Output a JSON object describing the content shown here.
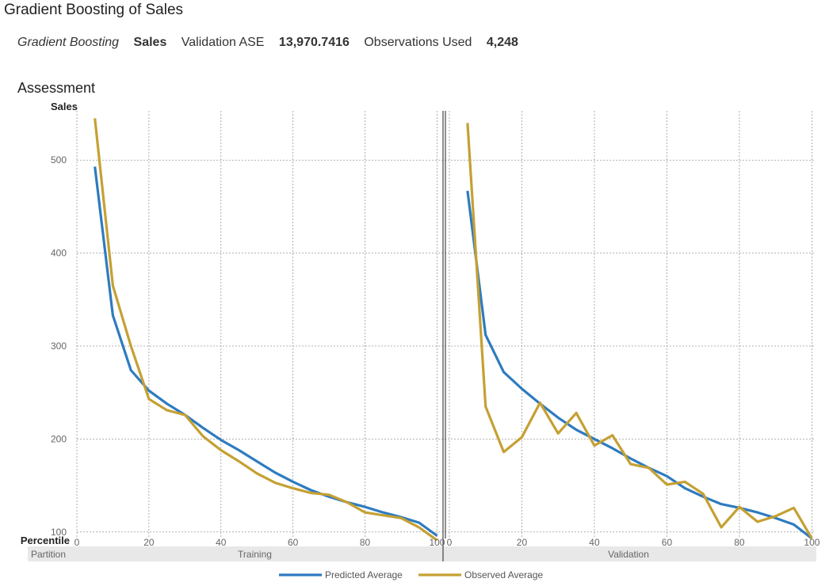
{
  "page": {
    "title": "Gradient Boosting of Sales"
  },
  "summary": {
    "model": "Gradient Boosting",
    "target": "Sales",
    "ase_label": "Validation ASE",
    "ase_value": "13,970.7416",
    "obs_label": "Observations Used",
    "obs_value": "4,248"
  },
  "section": {
    "title": "Assessment"
  },
  "colors": {
    "predicted": "#2e7bbf",
    "observed": "#c5a033",
    "grid": "#9a9a9a",
    "band": "#e8e8e8"
  },
  "chart_data": {
    "type": "line",
    "ylabel": "Sales",
    "xlabel": "Percentile",
    "band_label": "Partition",
    "ylim": [
      93,
      553
    ],
    "yticks": [
      100,
      200,
      300,
      400,
      500
    ],
    "xlim": [
      0,
      101
    ],
    "xticks": [
      0,
      20,
      40,
      60,
      80,
      100
    ],
    "grid": true,
    "legend_position": "bottom",
    "x": [
      5,
      10,
      15,
      20,
      25,
      30,
      35,
      40,
      45,
      50,
      55,
      60,
      65,
      70,
      75,
      80,
      85,
      90,
      95,
      100
    ],
    "panels": [
      {
        "name": "Training",
        "series": [
          {
            "name": "Predicted Average",
            "values": [
              493,
              333,
              274,
              252,
              238,
              226,
              212,
              199,
              188,
              176,
              164,
              154,
              145,
              138,
              132,
              127,
              121,
              116,
              110,
              96
            ]
          },
          {
            "name": "Observed Average",
            "values": [
              545,
              365,
              300,
              243,
              231,
              226,
              203,
              188,
              176,
              163,
              153,
              147,
              142,
              140,
              132,
              121,
              118,
              115,
              105,
              91
            ]
          }
        ]
      },
      {
        "name": "Validation",
        "series": [
          {
            "name": "Predicted Average",
            "values": [
              467,
              312,
              272,
              254,
              238,
              223,
              210,
              200,
              190,
              179,
              169,
              160,
              147,
              138,
              130,
              126,
              121,
              115,
              108,
              93
            ]
          },
          {
            "name": "Observed Average",
            "values": [
              540,
              235,
              186,
              202,
              239,
              206,
              228,
              193,
              204,
              173,
              169,
              151,
              154,
              141,
              105,
              127,
              111,
              117,
              126,
              93
            ]
          }
        ]
      }
    ]
  }
}
